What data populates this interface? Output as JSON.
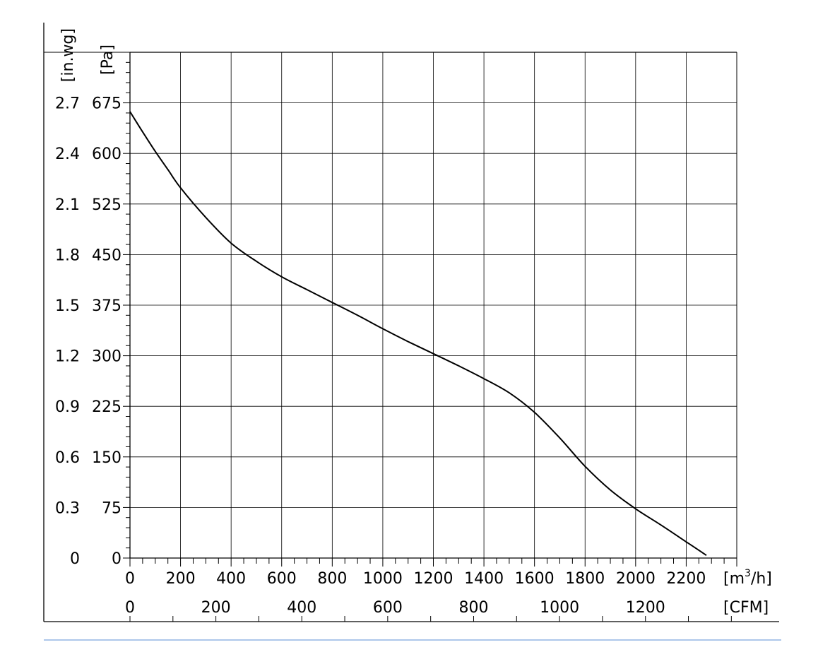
{
  "colors": {
    "line": "#000000",
    "grid": "#000000",
    "divider": "#5b8fd6"
  },
  "chart_data": {
    "type": "line",
    "title": "",
    "x_primary": {
      "label_pre": "[m",
      "label_sup": "3",
      "label_post": "/h]",
      "range": [
        0,
        2400
      ],
      "major_ticks": [
        0,
        200,
        400,
        600,
        800,
        1000,
        1200,
        1400,
        1600,
        1800,
        2000,
        2200
      ],
      "tick_labels": [
        "0",
        "200",
        "400",
        "600",
        "800",
        "1000",
        "1200",
        "1400",
        "1600",
        "1800",
        "2000",
        "2200"
      ],
      "minor_step": 50
    },
    "x_secondary": {
      "label": "[CFM]",
      "range": [
        0,
        1412.6
      ],
      "major_ticks": [
        0,
        200,
        400,
        600,
        800,
        1000,
        1200
      ],
      "tick_labels": [
        "0",
        "200",
        "400",
        "600",
        "800",
        "1000",
        "1200"
      ],
      "minor_step": 100
    },
    "y_primary": {
      "label": "[Pa]",
      "range": [
        0,
        750
      ],
      "major_ticks": [
        0,
        75,
        150,
        225,
        300,
        375,
        450,
        525,
        600,
        675
      ],
      "tick_labels": [
        "0",
        "75",
        "150",
        "225",
        "300",
        "375",
        "450",
        "525",
        "600",
        "675"
      ],
      "minor_step": 15
    },
    "y_secondary": {
      "label": "[in.wg]",
      "tick_labels": [
        "0",
        "0.3",
        "0.6",
        "0.9",
        "1.2",
        "1.5",
        "1.8",
        "2.1",
        "2.4",
        "2.7"
      ]
    },
    "grid": true,
    "series": [
      {
        "x": [
          0,
          50,
          100,
          150,
          200,
          300,
          400,
          500,
          600,
          700,
          800,
          900,
          1000,
          1100,
          1200,
          1300,
          1400,
          1500,
          1600,
          1700,
          1800,
          1900,
          2000,
          2100,
          2200,
          2280
        ],
        "y": [
          662,
          632,
          603,
          576,
          549,
          505,
          467,
          440,
          417,
          398,
          379,
          360,
          340,
          321,
          303,
          285,
          266,
          245,
          216,
          178,
          136,
          101,
          73,
          49,
          24,
          4
        ]
      }
    ]
  }
}
